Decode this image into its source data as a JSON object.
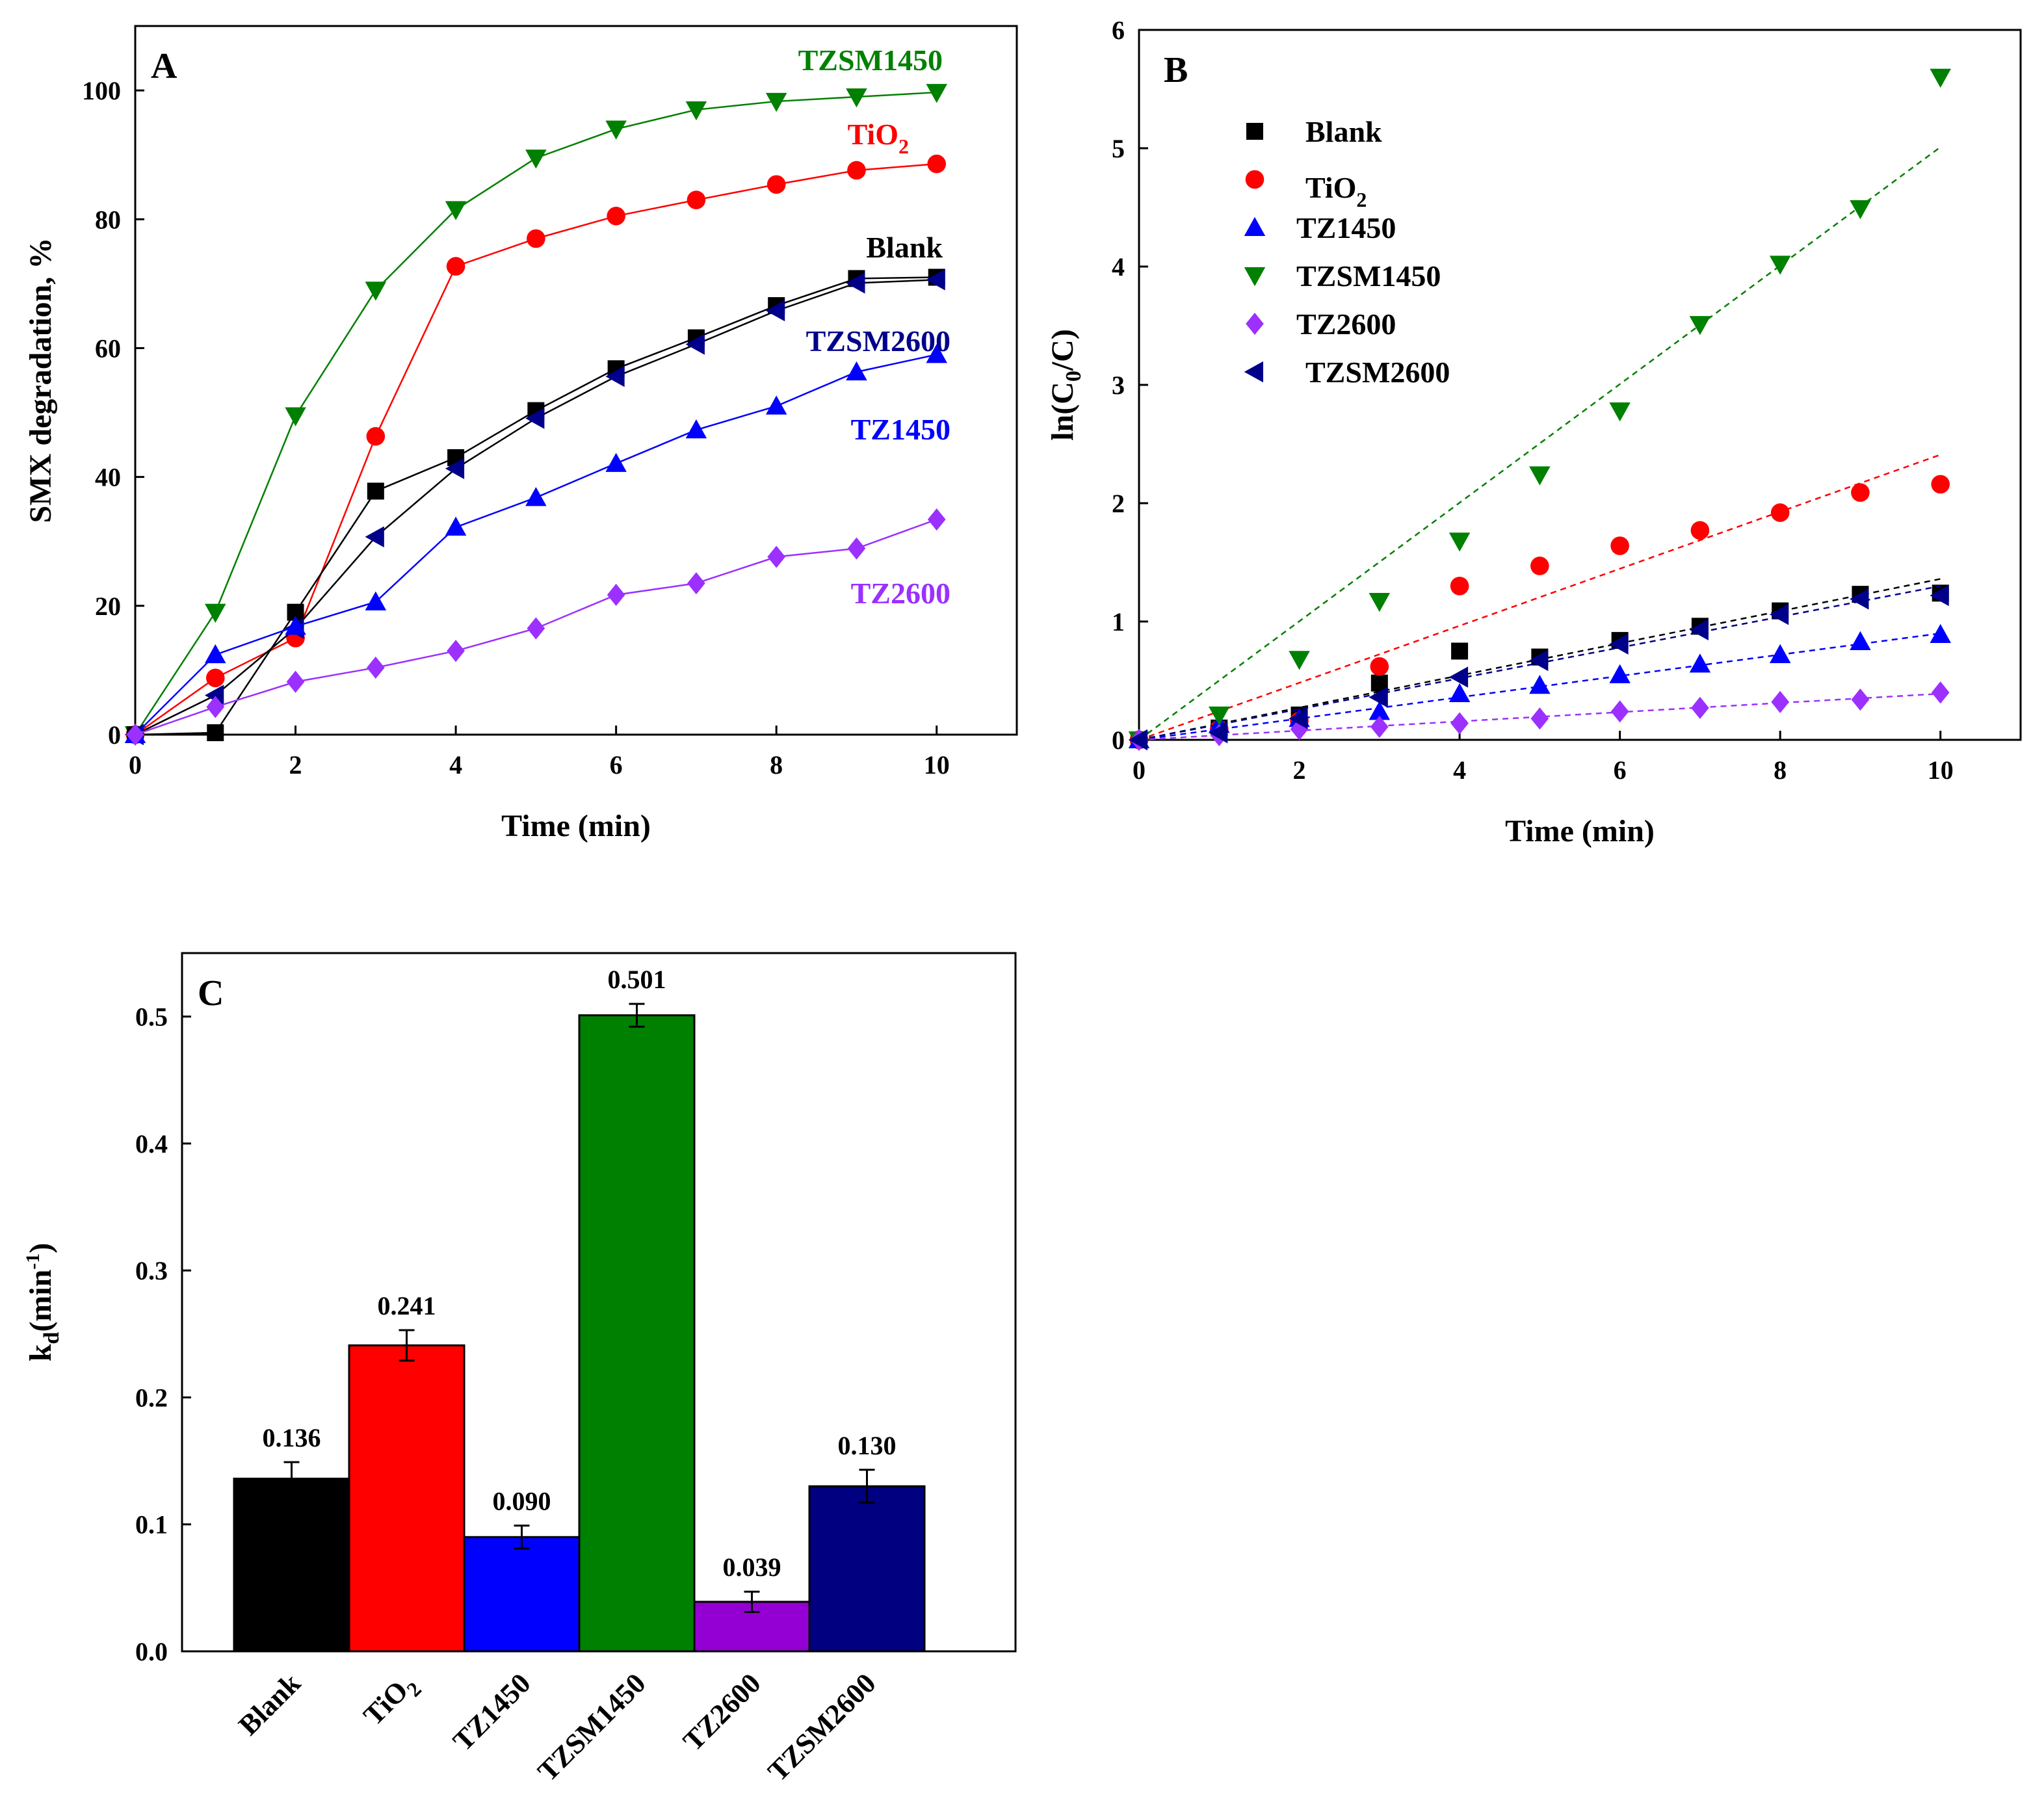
{
  "chart_data": [
    {
      "panel": "A",
      "type": "line",
      "xlabel": "Time (min)",
      "ylabel": "SMX degradation, %",
      "xlim": [
        0,
        11
      ],
      "ylim": [
        0,
        110
      ],
      "xticks": [
        0,
        2,
        4,
        6,
        8,
        10
      ],
      "yticks": [
        0,
        20,
        40,
        60,
        80,
        100
      ],
      "x": [
        0,
        1,
        2,
        3,
        4,
        5,
        6,
        7,
        8,
        9,
        10
      ],
      "series": [
        {
          "name": "TZSM1450",
          "label": "TZSM1450",
          "color": "#008000",
          "marker": "triangle-down",
          "values": [
            0,
            19,
            49.5,
            69,
            81.5,
            89.5,
            94,
            97,
            98.3,
            99,
            99.7
          ]
        },
        {
          "name": "TiO2",
          "label_main": "TiO",
          "label_sub": "2",
          "color": "#ff0000",
          "marker": "circle",
          "line_color": "#ff0000",
          "values": [
            0,
            8.8,
            15,
            46.3,
            72.7,
            77,
            80.5,
            83,
            85.4,
            87.6,
            88.6
          ]
        },
        {
          "name": "Blank",
          "label": "Blank",
          "color": "#000000",
          "marker": "square",
          "values": [
            0,
            0.3,
            19,
            37.8,
            43,
            50.3,
            56.8,
            61.6,
            66.6,
            70.8,
            71
          ]
        },
        {
          "name": "TZSM2600",
          "label": "TZSM2600",
          "color": "#00008b",
          "marker": "triangle-left",
          "line_color": "#000000",
          "values": [
            0,
            6.1,
            16.5,
            30.7,
            41.3,
            49.1,
            55.6,
            60.6,
            65.8,
            70.1,
            70.6
          ]
        },
        {
          "name": "TZ1450",
          "label": "TZ1450",
          "color": "#0000ff",
          "marker": "triangle-up",
          "values": [
            0,
            12.4,
            16.8,
            20.6,
            32.2,
            36.8,
            42.1,
            47.3,
            51,
            56.3,
            59
          ]
        },
        {
          "name": "TZ2600",
          "label": "TZ2600",
          "color": "#9b30ff",
          "marker": "diamond",
          "values": [
            0,
            4.3,
            8.2,
            10.4,
            13,
            16.5,
            21.7,
            23.5,
            27.6,
            28.9,
            33.4
          ]
        }
      ]
    },
    {
      "panel": "B",
      "type": "scatter",
      "xlabel": "Time (min)",
      "ylabel_main": "ln(C",
      "ylabel_sub": "0",
      "ylabel_end": "/C)",
      "xlim": [
        0,
        11
      ],
      "ylim": [
        0,
        6
      ],
      "xticks": [
        0,
        2,
        4,
        6,
        8,
        10
      ],
      "yticks": [
        0,
        1,
        2,
        3,
        4,
        5,
        6
      ],
      "x": [
        0,
        1,
        2,
        3,
        4,
        5,
        6,
        7,
        8,
        9,
        10
      ],
      "series": [
        {
          "name": "Blank",
          "label": "Blank",
          "color": "#000000",
          "marker": "square",
          "slope": 0.136,
          "values": [
            0,
            0.1,
            0.21,
            0.48,
            0.75,
            0.7,
            0.84,
            0.96,
            1.09,
            1.23,
            1.24
          ]
        },
        {
          "name": "TiO2",
          "label_main": "TiO",
          "label_sub": "2",
          "color": "#ff0000",
          "marker": "circle",
          "slope": 0.241,
          "values": [
            0,
            0.09,
            0.16,
            0.62,
            1.3,
            1.47,
            1.64,
            1.77,
            1.92,
            2.09,
            2.16
          ]
        },
        {
          "name": "TZ1450",
          "label": "TZ1450",
          "color": "#0000ff",
          "marker": "triangle-up",
          "slope": 0.09,
          "values": [
            0,
            0.13,
            0.18,
            0.24,
            0.39,
            0.46,
            0.55,
            0.64,
            0.72,
            0.83,
            0.89
          ]
        },
        {
          "name": "TZSM1450",
          "label": "TZSM1450",
          "color": "#008000",
          "marker": "triangle-down",
          "slope": 0.501,
          "values": [
            0,
            0.21,
            0.68,
            1.17,
            1.68,
            2.24,
            2.78,
            3.51,
            4.02,
            4.49,
            5.6
          ]
        },
        {
          "name": "TZ2600",
          "label": "TZ2600",
          "color": "#9b30ff",
          "marker": "diamond",
          "slope": 0.039,
          "values": [
            0,
            0.04,
            0.09,
            0.11,
            0.14,
            0.18,
            0.24,
            0.27,
            0.32,
            0.34,
            0.4
          ]
        },
        {
          "name": "TZSM2600",
          "label": "TZSM2600",
          "color": "#00008b",
          "marker": "triangle-left",
          "slope": 0.13,
          "values": [
            0,
            0.06,
            0.18,
            0.36,
            0.53,
            0.67,
            0.81,
            0.93,
            1.06,
            1.19,
            1.22
          ]
        }
      ]
    },
    {
      "panel": "C",
      "type": "bar",
      "ylabel_main": "k",
      "ylabel_sub": "d",
      "ylabel_end": "(min",
      "ylabel_sup": "-1",
      "ylabel_close": ")",
      "ylim": [
        0,
        0.55
      ],
      "yticks": [
        0.0,
        0.1,
        0.2,
        0.3,
        0.4,
        0.5
      ],
      "ytick_labels": [
        "0.0",
        "0.1",
        "0.2",
        "0.3",
        "0.4",
        "0.5"
      ],
      "categories": [
        "Blank",
        "TiO2",
        "TZ1450",
        "TZSM1450",
        "TZ2600",
        "TZSM2600"
      ],
      "category_labels": [
        {
          "main": "Blank"
        },
        {
          "main": "TiO",
          "sub": "2"
        },
        {
          "main": "TZ1450"
        },
        {
          "main": "TZSM1450"
        },
        {
          "main": "TZ2600"
        },
        {
          "main": "TZSM2600"
        }
      ],
      "values": [
        0.136,
        0.241,
        0.09,
        0.501,
        0.039,
        0.13
      ],
      "value_labels": [
        "0.136",
        "0.241",
        "0.090",
        "0.501",
        "0.039",
        "0.130"
      ],
      "errors": [
        0.013,
        0.012,
        0.009,
        0.009,
        0.008,
        0.013
      ],
      "colors": [
        "#000000",
        "#ff0000",
        "#0000ff",
        "#008000",
        "#9400d3",
        "#000080"
      ]
    }
  ]
}
